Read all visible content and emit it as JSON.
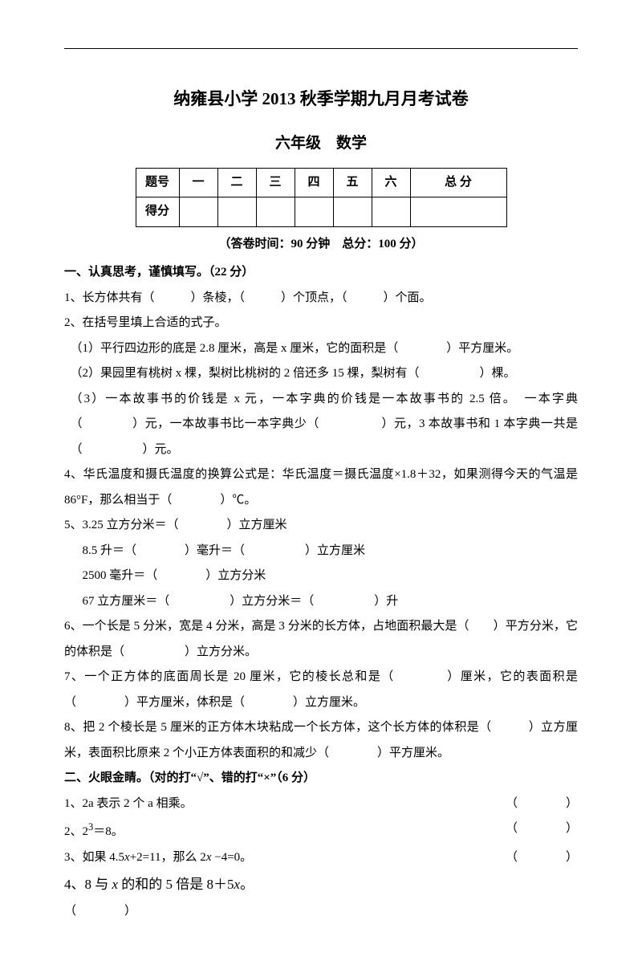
{
  "header": {
    "title_main": "纳雍县小学 2013 秋季学期九月月考试卷",
    "title_sub": "六年级　数学",
    "timing": "（答卷时间：90 分钟　总分：100 分）",
    "table": {
      "row1": [
        "题号",
        "一",
        "二",
        "三",
        "四",
        "五",
        "六",
        "总 分"
      ],
      "row2_label": "得分"
    }
  },
  "s1": {
    "heading": "一、认真思考，谨慎填写。（22 分）",
    "q1": "1、长方体共有（　　　）条棱，（　　　）个顶点，（　　　）个面。",
    "q2": "2、在括号里填上合适的式子。",
    "q2a": "（1）平行四边形的底是 2.8 厘米，高是 x 厘米，它的面积是（　　　　）平方厘米。",
    "q2b": "（2）果园里有桃树 x 棵，梨树比桃树的 2 倍还多 15 棵，梨树有（　　　　　）棵。",
    "q2c": "（3）一本故事书的价钱是 x 元，一本字典的价钱是一本故事书的 2.5 倍。　一本字典（　　　　）元，一本故事书比一本字典少（　　　　　）元，3 本故事书和 1 本字典一共是（　　　　　）元。",
    "q4": "4、华氏温度和摄氏温度的换算公式是：华氏温度＝摄氏温度×1.8＋32，如果测得今天的气温是 86°F，那么相当于（　　　　）℃。",
    "q5a": "5、3.25 立方分米＝（　　　　）立方厘米",
    "q5b": "8.5 升＝（　　　　）毫升＝（　　　　　）立方厘米",
    "q5c": "2500 毫升＝（　　　　）立方分米",
    "q5d": "67 立方厘米＝（　　　　　）立方分米＝（　　　　　）升",
    "q6": "6、一个长是 5 分米，宽是 4 分米，高是 3 分米的长方体，占地面积最大是（　　）平方分米，它的体积是（　　　　　）立方分米。",
    "q7": "7、一个正方体的底面周长是 20 厘米，它的棱长总和是（　　　　）厘米，它的表面积是（　　　　）平方厘米，体积是（　　　　）立方厘米。",
    "q8": "8、把 2 个棱长是 5 厘米的正方体木块粘成一个长方体，这个长方体的体积是（　　　）立方厘米，表面积比原来 2 个小正方体表面积的和减少（　　　　）平方厘米。"
  },
  "s2": {
    "heading": "二、火眼金睛。（对的打“√”、错的打“×”（6 分）",
    "q1_text": "1、2a 表示 2 个 a 相乘。",
    "q2_text_a": "2、2",
    "q2_text_b": "3",
    "q2_text_c": "＝8。",
    "q3_text_a": "3、如果 4.5",
    "q3_text_b": "x",
    "q3_text_c": "+2=11，那么 2",
    "q3_text_d": "x",
    "q3_text_e": " −4=0。",
    "q4_text_a": "4、8 与 ",
    "q4_text_b": "x",
    "q4_text_c": " 的和的 5 倍是 8＋5",
    "q4_text_d": "x",
    "q4_text_e": "。",
    "slot": "（　　　　）"
  }
}
